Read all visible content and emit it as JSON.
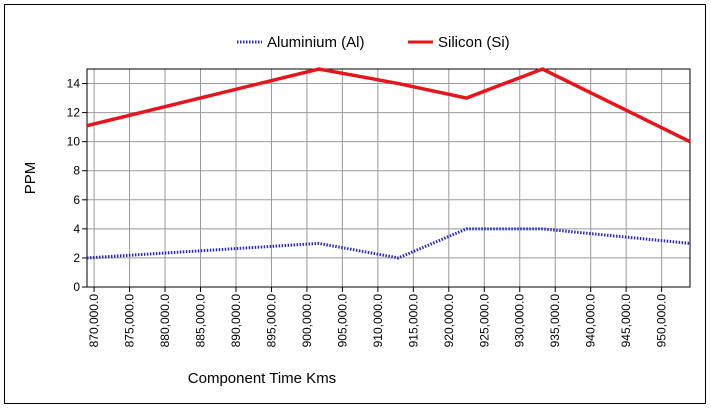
{
  "chart_data": {
    "type": "line",
    "x": [
      869000,
      901700,
      912900,
      922500,
      933200,
      954000
    ],
    "series": [
      {
        "name": "Aluminium (Al)",
        "color": "#2727c8",
        "dash": "dotted",
        "values": [
          2,
          3,
          2,
          4,
          4,
          3
        ]
      },
      {
        "name": "Silicon (Si)",
        "color": "#e8141c",
        "values": [
          11.1,
          15,
          14,
          13,
          15,
          10
        ]
      }
    ],
    "xlabel": "Component Time Kms",
    "ylabel": "PPM",
    "xlim": [
      869000,
      954000
    ],
    "ylim": [
      0,
      15
    ],
    "yticks": [
      0,
      2,
      4,
      6,
      8,
      10,
      12,
      14
    ],
    "xticks": [
      {
        "value": 870000,
        "label": "870,000.0"
      },
      {
        "value": 875000,
        "label": "875,000.0"
      },
      {
        "value": 880000,
        "label": "880,000.0"
      },
      {
        "value": 885000,
        "label": "885,000.0"
      },
      {
        "value": 890000,
        "label": "890,000.0"
      },
      {
        "value": 895000,
        "label": "895,000.0"
      },
      {
        "value": 900000,
        "label": "900,000.0"
      },
      {
        "value": 905000,
        "label": "905,000.0"
      },
      {
        "value": 910000,
        "label": "910,000.0"
      },
      {
        "value": 915000,
        "label": "915,000.0"
      },
      {
        "value": 920000,
        "label": "920,000.0"
      },
      {
        "value": 925000,
        "label": "925,000.0"
      },
      {
        "value": 930000,
        "label": "930,000.0"
      },
      {
        "value": 935000,
        "label": "935,000.0"
      },
      {
        "value": 940000,
        "label": "940,000.0"
      },
      {
        "value": 945000,
        "label": "945,000.0"
      },
      {
        "value": 950000,
        "label": "950,000.0"
      }
    ],
    "grid": true,
    "legend": "top"
  }
}
